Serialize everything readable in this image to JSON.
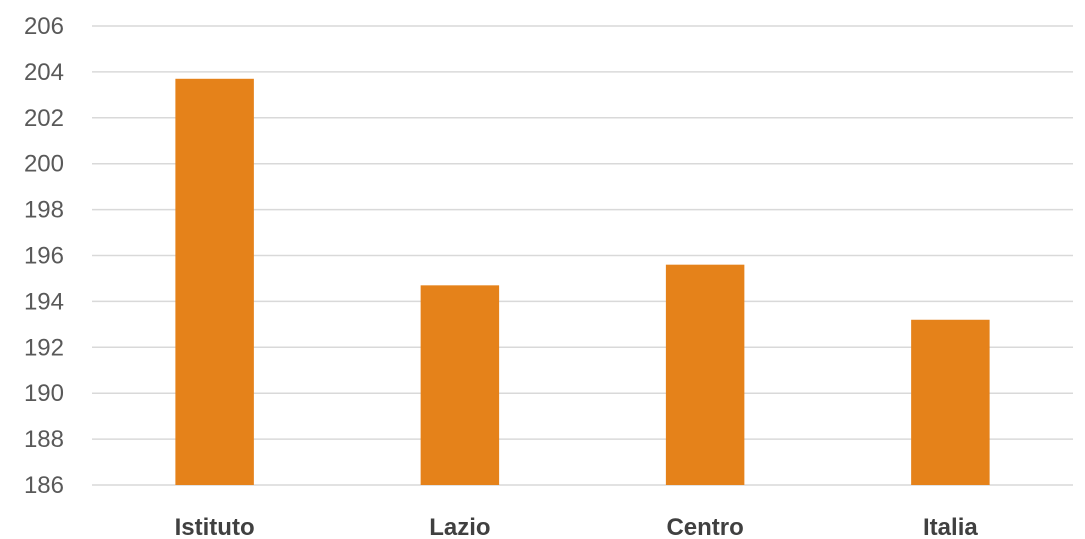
{
  "chart_data": {
    "type": "bar",
    "title": "",
    "xlabel": "",
    "ylabel": "",
    "categories": [
      "Istituto",
      "Lazio",
      "Centro",
      "Italia"
    ],
    "values": [
      203.7,
      194.7,
      195.6,
      193.2
    ],
    "ylim": [
      186,
      206
    ],
    "yticks": [
      186,
      188,
      190,
      192,
      194,
      196,
      198,
      200,
      202,
      204,
      206
    ],
    "grid": true,
    "legend": "none",
    "bar_color": "#E5821A",
    "gridline_color": "#D9D9D9"
  }
}
